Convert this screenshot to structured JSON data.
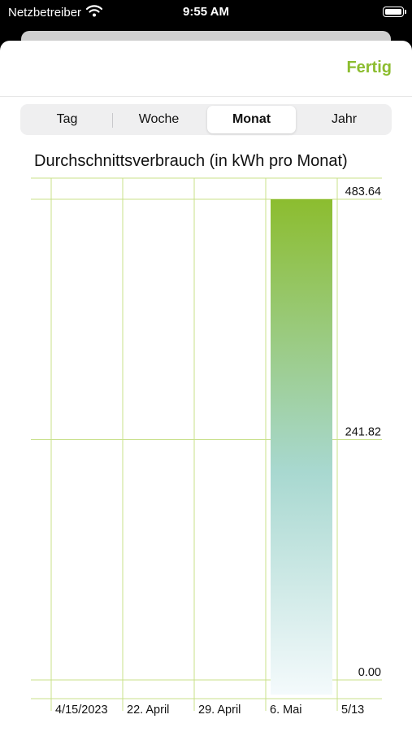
{
  "status_bar": {
    "carrier": "Netzbetreiber",
    "time": "9:55 AM",
    "icons": [
      "wifi-icon",
      "battery-icon"
    ]
  },
  "nav": {
    "done_label": "Fertig"
  },
  "segments": {
    "items": [
      "Tag",
      "Woche",
      "Monat",
      "Jahr"
    ],
    "selected": "Monat"
  },
  "colors": {
    "accent": "#8cbd2f",
    "grid": "#c8e08a",
    "bar_top": "#8cbd2f",
    "bar_mid": "#a8d8d0",
    "bar_bottom": "#f4fafc"
  },
  "chart_data": {
    "type": "bar",
    "title": "Durchschnittsverbrauch (in kWh pro Monat)",
    "categories": [
      "4/15/2023",
      "22. April",
      "29. April",
      "6. Mai",
      "5/13"
    ],
    "values": [
      null,
      null,
      null,
      483.64,
      null
    ],
    "y_ticks": [
      "0.00",
      "241.82",
      "483.64"
    ],
    "ylim": [
      0,
      483.64
    ],
    "grid": true,
    "y_axis_position": "right"
  }
}
